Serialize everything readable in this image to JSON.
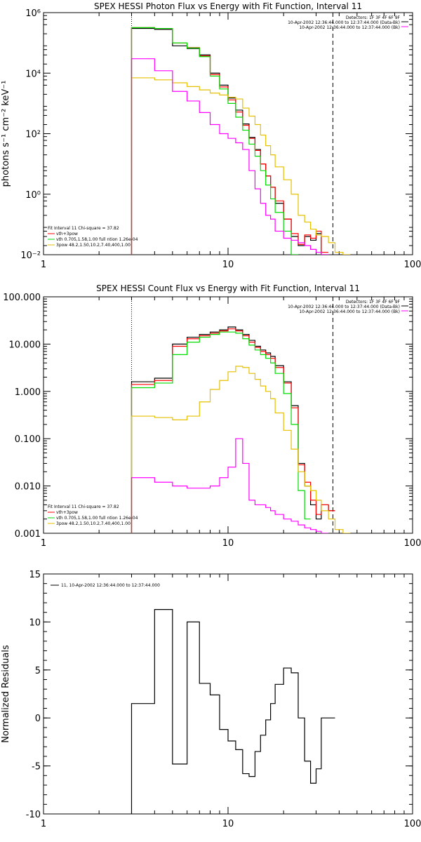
{
  "chart_data": [
    {
      "type": "line",
      "title": "SPEX HESSI Photon Flux vs Energy with Fit Function, Interval 11",
      "ylabel": "photons s⁻¹ cm⁻² keV⁻¹",
      "xlabel": "",
      "xscale": "log",
      "yscale": "log",
      "xlim": [
        1,
        100
      ],
      "ylim": [
        0.01,
        1000000
      ],
      "x_ticks": [
        1,
        10,
        100
      ],
      "x_tick_labels": [
        "1",
        "10",
        "100"
      ],
      "y_ticks": [
        0.01,
        1,
        100,
        10000,
        1000000
      ],
      "y_tick_labels": [
        "10⁻²",
        "10⁰",
        "10²",
        "10⁴",
        "10⁶"
      ],
      "vlines": [
        {
          "x": 3,
          "style": "dotted"
        },
        {
          "x": 37,
          "style": "dashed"
        }
      ],
      "info_lines": [
        "Detectors: 1F 3F 4F 6F 9F",
        "10-Apr-2002 12:36:44.000 to 12:37:44.000 (Data-Bk)",
        "10-Apr-2002 12:36:44.000 to 12:37:44.000 (Bk)"
      ],
      "fit_text": [
        "Fit Interval 11    Chi-square = 37.82",
        "vth+3pow",
        "vth 0.705,1.58,1.00  full ntion 1.26e-04",
        "3pow 48.2,1.50,10.2,7.40,400,1.00"
      ],
      "bin_edges": [
        3,
        4,
        5,
        6,
        7,
        8,
        9,
        10,
        11,
        12,
        13,
        14,
        15,
        16,
        17,
        18,
        20,
        22,
        24,
        26,
        28,
        30,
        32,
        35,
        38,
        42,
        46
      ],
      "series": [
        {
          "name": "",
          "role": "data",
          "color": "#000000",
          "values": [
            300000,
            280000,
            80000,
            65000,
            40000,
            10000,
            4000,
            1500,
            600,
            210,
            75,
            30,
            10,
            4,
            1.7,
            0.5,
            0.15,
            0.04,
            0.02,
            0.04,
            0.03,
            0.05,
            0.01,
            null,
            null,
            null
          ]
        },
        {
          "name": "vth+3pow",
          "role": "total-fit",
          "color": "#ff0000",
          "values": [
            320000,
            300000,
            100000,
            70000,
            37000,
            9000,
            3500,
            1300,
            520,
            190,
            70,
            28,
            10,
            4,
            1.7,
            0.6,
            0.15,
            0.05,
            0.022,
            0.045,
            0.035,
            0.06,
            0.012,
            null,
            null,
            null
          ]
        },
        {
          "name": "vth",
          "role": "thermal",
          "color": "#00dd00",
          "values": [
            320000,
            300000,
            100000,
            68000,
            35000,
            8000,
            3000,
            1000,
            350,
            130,
            45,
            18,
            6,
            2,
            0.7,
            0.25,
            0.06,
            0.01,
            null,
            null,
            null,
            null,
            null,
            null,
            null,
            null
          ]
        },
        {
          "name": "3pow",
          "role": "power-law",
          "color": "#e6c000",
          "values": [
            7000,
            6000,
            4800,
            3600,
            2800,
            2200,
            1900,
            1600,
            1400,
            700,
            380,
            200,
            90,
            40,
            20,
            8,
            3,
            1,
            0.2,
            0.12,
            0.07,
            0.045,
            0.04,
            0.025,
            0.012,
            0.01
          ]
        },
        {
          "name": "",
          "role": "background",
          "color": "#ff00ff",
          "values": [
            30000,
            12000,
            2500,
            1200,
            500,
            200,
            100,
            70,
            50,
            30,
            6,
            1.5,
            0.5,
            0.2,
            0.15,
            0.06,
            0.035,
            0.03,
            0.025,
            0.02,
            0.015,
            0.012,
            0.01,
            0.008,
            null,
            null
          ]
        }
      ]
    },
    {
      "type": "line",
      "title": "SPEX HESSI Count Flux vs Energy with Fit Function, Interval 11",
      "ylabel": "",
      "xlabel": "",
      "xscale": "log",
      "yscale": "log",
      "xlim": [
        1,
        100
      ],
      "ylim": [
        0.001,
        100
      ],
      "x_ticks": [
        1,
        10,
        100
      ],
      "x_tick_labels": [
        "1",
        "10",
        "100"
      ],
      "y_ticks": [
        0.001,
        0.01,
        0.1,
        1,
        10,
        100
      ],
      "y_tick_labels": [
        "0.001",
        "0.010",
        "0.100",
        "1.000",
        "10.000",
        "100.000"
      ],
      "vlines": [
        {
          "x": 3,
          "style": "dotted"
        },
        {
          "x": 37,
          "style": "dashed"
        }
      ],
      "info_lines": [
        "Detectors: 1F 3F 4F 6F 9F",
        "10-Apr-2002 12:36:44.000 to 12:37:44.000 (Data-Bk)",
        "10-Apr-2002 12:36:44.000 to 12:37:44.000 (Bk)"
      ],
      "fit_text": [
        "Fit Interval 11    Chi-square = 37.82",
        "vth+3pow",
        "vth 0.705,1.58,1.00  full ntion 1.26e-04",
        "3pow 48.2,1.50,10.2,7.40,400,1.00"
      ],
      "bin_edges": [
        3,
        4,
        5,
        6,
        7,
        8,
        9,
        10,
        11,
        12,
        13,
        14,
        15,
        16,
        17,
        18,
        20,
        22,
        24,
        26,
        28,
        30,
        32,
        35,
        38,
        42,
        46
      ],
      "series": [
        {
          "name": "",
          "role": "data",
          "color": "#000000",
          "values": [
            1.6,
            1.9,
            10,
            14,
            16,
            18,
            20,
            23,
            20,
            16,
            12,
            9,
            7.5,
            6.5,
            5.5,
            3.5,
            1.6,
            0.5,
            0.03,
            0.01,
            0.004,
            0.002,
            0.004,
            0.003,
            null,
            null
          ]
        },
        {
          "name": "vth+3pow",
          "role": "total-fit",
          "color": "#ff0000",
          "values": [
            1.4,
            1.7,
            9,
            13,
            15,
            17,
            19,
            21,
            19,
            15,
            11,
            8.5,
            7,
            6,
            5,
            3.2,
            1.5,
            0.45,
            0.028,
            0.012,
            0.005,
            0.0025,
            0.004,
            0.003,
            null,
            null
          ]
        },
        {
          "name": "vth",
          "role": "thermal",
          "color": "#00dd00",
          "values": [
            1.2,
            1.5,
            6,
            11,
            14,
            16,
            18,
            18,
            17,
            13,
            9.5,
            7.5,
            6,
            5,
            4,
            2.4,
            0.9,
            0.2,
            0.008,
            0.002,
            null,
            null,
            null,
            null,
            null,
            null
          ]
        },
        {
          "name": "3pow",
          "role": "power-law",
          "color": "#e6c000",
          "values": [
            0.3,
            0.28,
            0.25,
            0.3,
            0.6,
            1.1,
            1.7,
            2.6,
            3.4,
            3.2,
            2.4,
            1.8,
            1.3,
            1,
            0.7,
            0.35,
            0.15,
            0.06,
            0.02,
            0.01,
            0.008,
            0.005,
            0.003,
            0.002,
            0.0012,
            0.001
          ]
        },
        {
          "name": "",
          "role": "background",
          "color": "#ff00ff",
          "values": [
            0.015,
            0.012,
            0.01,
            0.009,
            0.009,
            0.01,
            0.015,
            0.025,
            0.1,
            0.03,
            0.005,
            0.004,
            0.004,
            0.0035,
            0.003,
            0.0025,
            0.002,
            0.0018,
            0.0015,
            0.0013,
            0.0012,
            0.0011,
            0.001,
            null,
            null,
            null
          ]
        }
      ]
    },
    {
      "type": "line",
      "title": "",
      "ylabel": "Normalized Residuals",
      "xlabel": "",
      "xscale": "log",
      "yscale": "linear",
      "xlim": [
        1,
        100
      ],
      "ylim": [
        -10,
        15
      ],
      "x_ticks": [
        1,
        10,
        100
      ],
      "x_tick_labels": [
        "1",
        "10",
        "100"
      ],
      "y_ticks": [
        -10,
        -5,
        0,
        5,
        10,
        15
      ],
      "y_tick_labels": [
        "-10",
        "-5",
        "0",
        "5",
        "10",
        "15"
      ],
      "legend": [
        "11, 10-Apr-2002 12:36:44.000 to 12:37:44.000"
      ],
      "bin_edges": [
        3,
        4,
        5,
        6,
        7,
        8,
        9,
        10,
        11,
        12,
        13,
        14,
        15,
        16,
        17,
        18,
        20,
        22,
        24,
        26,
        28,
        30,
        32,
        35,
        38
      ],
      "series": [
        {
          "name": "11, 10-Apr-2002 12:36:44.000 to 12:37:44.000",
          "color": "#000000",
          "values": [
            1.5,
            11.3,
            -4.8,
            10,
            3.6,
            2.4,
            -1.2,
            -2.4,
            -3.3,
            -5.8,
            -6.1,
            -3.5,
            -1.8,
            -0.2,
            1.5,
            3.5,
            5.2,
            4.7,
            0,
            -4.5,
            -6.8,
            -5.3,
            0,
            0
          ]
        }
      ]
    }
  ]
}
